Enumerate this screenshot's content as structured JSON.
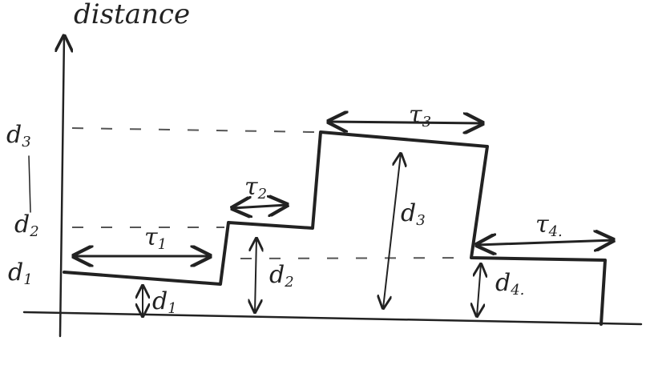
{
  "axis_label": "distance",
  "level_labels": [
    {
      "base": "d",
      "sub": "3"
    },
    {
      "base": "d",
      "sub": "2"
    },
    {
      "base": "d",
      "sub": "1"
    }
  ],
  "duration_labels": [
    {
      "base": "τ",
      "sub": "1"
    },
    {
      "base": "τ",
      "sub": "2"
    },
    {
      "base": "τ",
      "sub": "3"
    },
    {
      "base": "τ",
      "sub": "4."
    }
  ],
  "height_labels": [
    {
      "base": "d",
      "sub": "1"
    },
    {
      "base": "d",
      "sub": "2"
    },
    {
      "base": "d",
      "sub": "3"
    },
    {
      "base": "d",
      "sub": "4."
    }
  ]
}
